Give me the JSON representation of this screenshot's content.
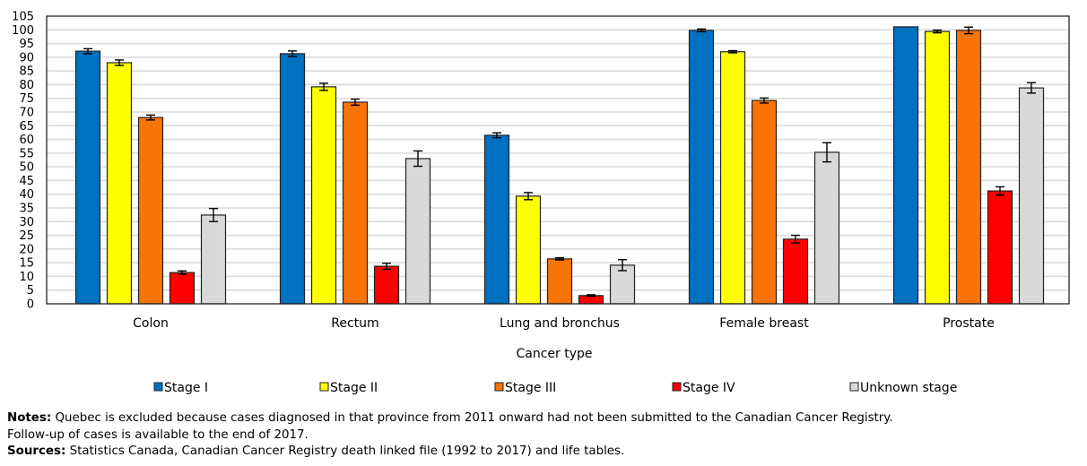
{
  "chart_data": {
    "type": "bar",
    "title": "",
    "xlabel": "Cancer type",
    "ylabel": "",
    "ylim": [
      0,
      105
    ],
    "yticks": [
      0,
      5,
      10,
      15,
      20,
      25,
      30,
      35,
      40,
      45,
      50,
      55,
      60,
      65,
      70,
      75,
      80,
      85,
      90,
      95,
      100,
      105
    ],
    "grid": true,
    "legend_position": "bottom",
    "categories": [
      "Colon",
      "Rectum",
      "Lung and bronchus",
      "Female breast",
      "Prostate"
    ],
    "series": [
      {
        "name": "Stage I",
        "color": "#0070c0",
        "values": [
          92.2,
          91.3,
          61.5,
          99.8,
          101.1
        ],
        "error": [
          0.9,
          1.0,
          0.9,
          0.5,
          0.0
        ]
      },
      {
        "name": "Stage II",
        "color": "#ffff00",
        "values": [
          88.0,
          79.2,
          39.3,
          92.0,
          99.4
        ],
        "error": [
          1.0,
          1.3,
          1.3,
          0.4,
          0.5
        ]
      },
      {
        "name": "Stage III",
        "color": "#f97306",
        "values": [
          68.0,
          73.6,
          16.4,
          74.2,
          99.8
        ],
        "error": [
          0.9,
          1.1,
          0.4,
          0.9,
          1.2
        ]
      },
      {
        "name": "Stage IV",
        "color": "#ff0000",
        "values": [
          11.4,
          13.7,
          3.0,
          23.6,
          41.2
        ],
        "error": [
          0.6,
          1.1,
          0.3,
          1.4,
          1.5
        ]
      },
      {
        "name": "Unknown stage",
        "color": "#d9d9d9",
        "values": [
          32.4,
          53.0,
          14.1,
          55.3,
          78.8
        ],
        "error": [
          2.4,
          2.8,
          2.0,
          3.5,
          1.9
        ]
      }
    ]
  },
  "notes": {
    "notes_label": "Notes:",
    "notes_text": " Quebec is excluded because cases diagnosed in that province from 2011 onward had not been submitted to the Canadian Cancer Registry.",
    "notes_line2": "Follow-up of cases is available to the end of 2017.",
    "sources_label": "Sources:",
    "sources_text": " Statistics Canada, Canadian Cancer Registry death linked file (1992 to 2017) and life tables."
  }
}
